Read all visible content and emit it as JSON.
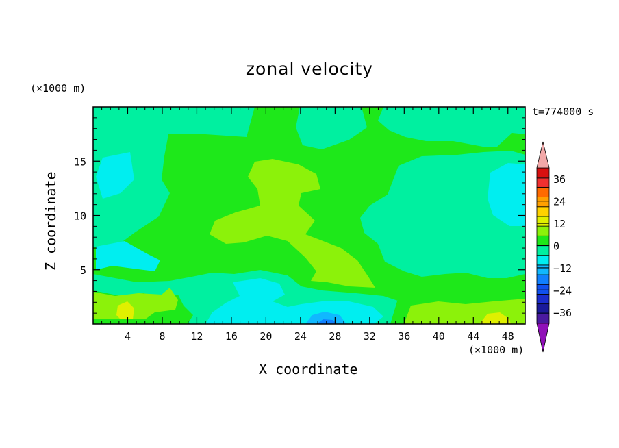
{
  "chart_data": {
    "type": "heatmap",
    "title": "zonal velocity",
    "xlabel": "X coordinate",
    "ylabel": "Z coordinate",
    "x_unit": "(×1000 m)",
    "y_unit": "(×1000 m)",
    "timestamp": "t=774000 s",
    "xlim": [
      0,
      50
    ],
    "ylim": [
      0,
      20
    ],
    "x_ticks": [
      "4",
      "8",
      "12",
      "16",
      "20",
      "24",
      "28",
      "32",
      "36",
      "40",
      "44",
      "48"
    ],
    "y_ticks": [
      "5",
      "10",
      "15"
    ],
    "colorbar": {
      "levels": [
        -42,
        -36,
        -30,
        -24,
        -18,
        -12,
        -6,
        0,
        6,
        12,
        18,
        24,
        30,
        36,
        42
      ],
      "colors": [
        "#4a1aa0",
        "#1a1a9a",
        "#1a2ccc",
        "#1050ee",
        "#1080ff",
        "#10b8ff",
        "#00eef0",
        "#00f0a0",
        "#1ee81a",
        "#8cf20a",
        "#e0f000",
        "#ffd200",
        "#ffa000",
        "#ff6a00",
        "#f03030",
        "#d81010"
      ],
      "under_color": "#9010b8",
      "over_color": "#f2a8a8",
      "tick_labels": [
        "36",
        "24",
        "12",
        "0",
        "−12",
        "−24",
        "−36"
      ]
    },
    "regions": [
      {
        "name": "background",
        "level": "0 to 6"
      },
      {
        "name": "upper-left",
        "level": "-6 to 0"
      },
      {
        "name": "right-middle",
        "level": "-6 to 0"
      },
      {
        "name": "central-plume",
        "level": "6 to 12"
      },
      {
        "name": "lower-left",
        "level": "-12 to -6"
      },
      {
        "name": "near-surface-band",
        "level": "6 to 12"
      },
      {
        "name": "surface-peaks",
        "level": "12 to 18"
      },
      {
        "name": "surface-minimum",
        "level": "-24 to -12"
      }
    ]
  }
}
